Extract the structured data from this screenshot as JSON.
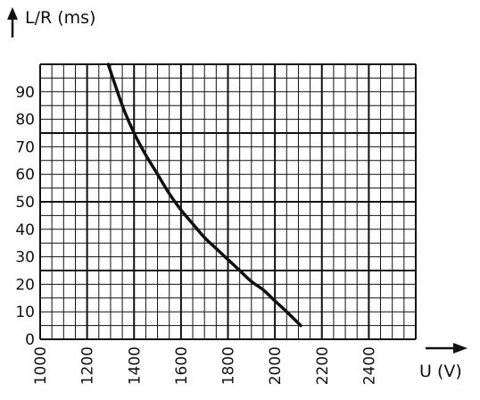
{
  "chart_data": {
    "type": "line",
    "ylabel": "L/R (ms)",
    "xlabel": "U (V)",
    "xlim": [
      1000,
      2600
    ],
    "ylim": [
      0,
      100
    ],
    "x_tick_values": [
      1000,
      1200,
      1400,
      1600,
      1800,
      2000,
      2200,
      2400
    ],
    "x_ticks": [
      "1000",
      "1200",
      "1400",
      "1600",
      "1800",
      "2000",
      "2200",
      "2400"
    ],
    "y_tick_values": [
      0,
      10,
      20,
      30,
      40,
      50,
      60,
      70,
      80,
      90
    ],
    "y_ticks": [
      "0",
      "10",
      "20",
      "30",
      "40",
      "50",
      "60",
      "70",
      "80",
      "90"
    ],
    "grid": true,
    "series": [
      {
        "x": [
          1290,
          1350,
          1400,
          1450,
          1500,
          1550,
          1600,
          1650,
          1700,
          1750,
          1800,
          1850,
          1900,
          1950,
          2000,
          2050,
          2110
        ],
        "y": [
          100,
          85,
          75,
          67,
          60,
          53,
          47,
          42,
          37,
          33,
          29,
          25,
          21,
          18,
          14,
          10,
          5
        ]
      }
    ],
    "colors": {
      "line": "#111111",
      "grid": "#111111"
    }
  }
}
